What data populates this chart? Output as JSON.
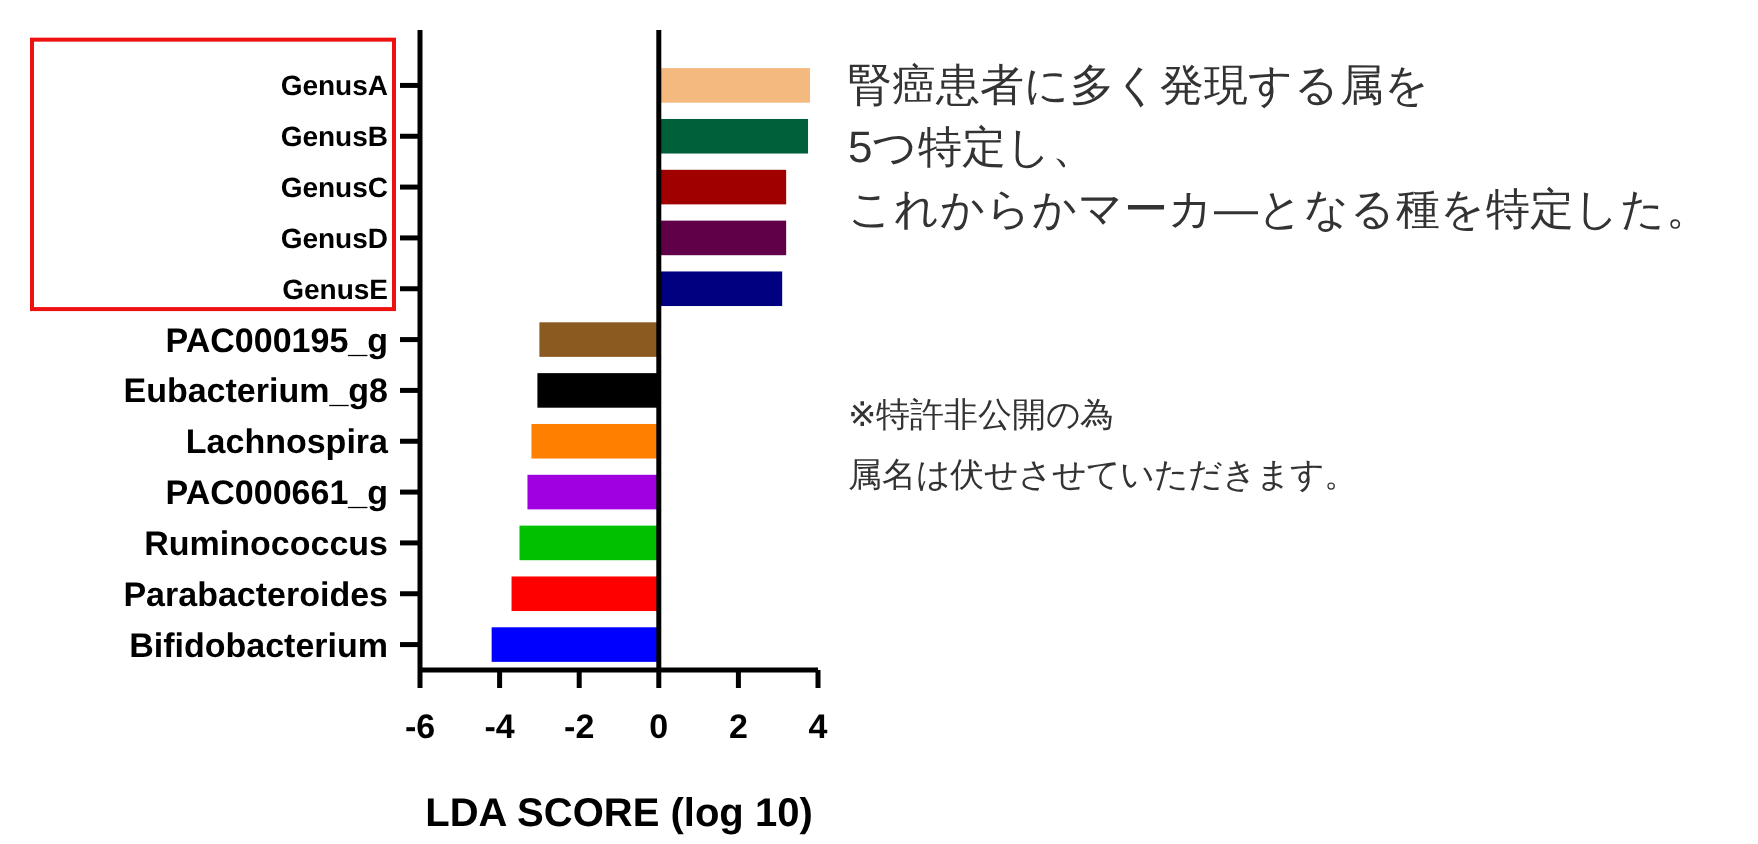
{
  "chart_data": {
    "type": "bar",
    "orientation": "horizontal",
    "categories": [
      "GenusA",
      "GenusB",
      "GenusC",
      "GenusD",
      "GenusE",
      "PAC000195_g",
      "Eubacterium_g8",
      "Lachnospira",
      "PAC000661_g",
      "Ruminococcus",
      "Parabacteroides",
      "Bifidobacterium"
    ],
    "values": [
      3.8,
      3.75,
      3.2,
      3.2,
      3.1,
      -3.0,
      -3.05,
      -3.2,
      -3.3,
      -3.5,
      -3.7,
      -4.2
    ],
    "colors": [
      "#f4b97f",
      "#00603a",
      "#a00000",
      "#600048",
      "#000080",
      "#8b5a20",
      "#000000",
      "#ff8000",
      "#a000e0",
      "#00c000",
      "#ff0000",
      "#0000ff"
    ],
    "xlabel": "LDA SCORE (log 10)",
    "xlim": [
      -6,
      4
    ],
    "xticks": [
      -6,
      -4,
      -2,
      0,
      2,
      4
    ],
    "ref_lines": [
      {
        "axis": "x",
        "value": 0,
        "color": "#000000"
      }
    ],
    "grid": false,
    "annotations": [
      "腎癌患者に多く発現する属を",
      "5つ特定し、",
      "これからかマーカ—となる種を特定した。",
      "※特許非公開の為",
      "属名は伏せさせていただきます。"
    ]
  }
}
